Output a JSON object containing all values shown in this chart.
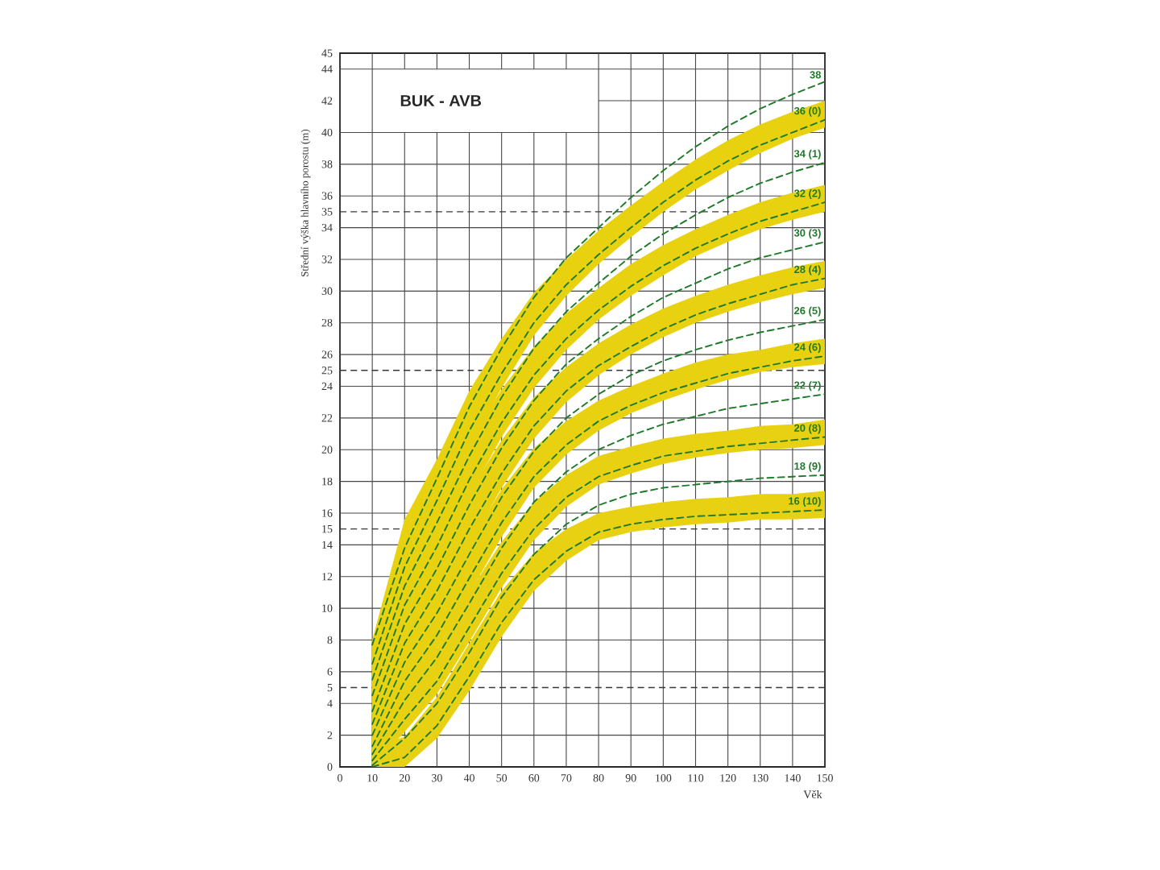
{
  "chart_data": {
    "type": "line",
    "title": "BUK - AVB",
    "xlabel": "Věk",
    "ylabel": "Střední výška hlavního porostu (m)",
    "x": [
      10,
      20,
      30,
      40,
      50,
      60,
      70,
      80,
      90,
      100,
      110,
      120,
      130,
      140,
      150
    ],
    "xlim": [
      0,
      150
    ],
    "ylim": [
      0,
      45
    ],
    "xticks": [
      0,
      10,
      20,
      30,
      40,
      50,
      60,
      70,
      80,
      90,
      100,
      110,
      120,
      130,
      140,
      150
    ],
    "yticks": [
      0,
      2,
      4,
      5,
      6,
      8,
      10,
      12,
      14,
      15,
      16,
      18,
      20,
      22,
      24,
      25,
      26,
      28,
      30,
      32,
      34,
      35,
      36,
      38,
      40,
      42,
      44,
      45
    ],
    "grid": true,
    "line_style": "dashed",
    "series": [
      {
        "name": "38",
        "color": "#1e7a28",
        "values": [
          7.7,
          13.8,
          18.2,
          22.7,
          26.4,
          29.6,
          32.1,
          34.0,
          35.9,
          37.6,
          39.1,
          40.4,
          41.5,
          42.4,
          43.2
        ]
      },
      {
        "name": "36 (0)",
        "color": "#1e7a28",
        "values": [
          6.5,
          12.6,
          16.8,
          21.2,
          24.8,
          28.0,
          30.4,
          32.3,
          34.0,
          35.6,
          37.0,
          38.2,
          39.2,
          40.0,
          40.8
        ],
        "lower": [
          5.5,
          11.3,
          15.8,
          20.1,
          23.9,
          27.2,
          29.7,
          31.7,
          33.4,
          35.0,
          36.4,
          37.6,
          38.7,
          39.6,
          40.3
        ],
        "upper": [
          8.0,
          15.6,
          19.4,
          23.7,
          27.0,
          29.9,
          32.0,
          33.8,
          35.4,
          36.9,
          38.3,
          39.5,
          40.5,
          41.3,
          42.0
        ]
      },
      {
        "name": "34 (1)",
        "color": "#1e7a28",
        "values": [
          5.5,
          11.4,
          15.4,
          19.6,
          23.3,
          26.4,
          28.7,
          30.5,
          32.2,
          33.6,
          34.8,
          35.9,
          36.8,
          37.5,
          38.1
        ]
      },
      {
        "name": "32 (2)",
        "color": "#1e7a28",
        "values": [
          4.5,
          10.2,
          13.9,
          18.1,
          21.7,
          24.7,
          27.0,
          28.8,
          30.3,
          31.6,
          32.7,
          33.6,
          34.4,
          35.0,
          35.6
        ],
        "lower": [
          3.1,
          9.0,
          12.9,
          17.1,
          20.8,
          23.9,
          26.3,
          28.2,
          29.7,
          31.0,
          32.2,
          33.1,
          33.9,
          34.5,
          35.0
        ],
        "upper": [
          7.8,
          13.0,
          16.3,
          20.5,
          23.8,
          26.5,
          28.6,
          30.2,
          31.7,
          32.9,
          33.9,
          34.8,
          35.6,
          36.2,
          36.7
        ]
      },
      {
        "name": "30 (3)",
        "color": "#1e7a28",
        "values": [
          3.5,
          9.0,
          12.5,
          16.5,
          20.1,
          23.1,
          25.4,
          27.0,
          28.4,
          29.6,
          30.5,
          31.4,
          32.1,
          32.6,
          33.1
        ]
      },
      {
        "name": "28 (4)",
        "color": "#1e7a28",
        "values": [
          2.7,
          7.8,
          11.1,
          15.0,
          18.5,
          21.5,
          23.7,
          25.3,
          26.5,
          27.6,
          28.5,
          29.2,
          29.8,
          30.4,
          30.8
        ],
        "lower": [
          1.4,
          6.7,
          10.1,
          14.0,
          17.6,
          20.7,
          23.0,
          24.7,
          26.0,
          27.1,
          28.0,
          28.7,
          29.3,
          29.8,
          30.2
        ],
        "upper": [
          5.7,
          10.4,
          13.4,
          17.3,
          20.6,
          23.3,
          25.2,
          26.7,
          27.9,
          28.9,
          29.7,
          30.4,
          31.0,
          31.5,
          31.9
        ]
      },
      {
        "name": "26 (5)",
        "color": "#1e7a28",
        "values": [
          2.0,
          6.6,
          9.7,
          13.4,
          17.0,
          19.9,
          22.0,
          23.5,
          24.7,
          25.6,
          26.3,
          26.9,
          27.4,
          27.8,
          28.2
        ]
      },
      {
        "name": "24 (6)",
        "color": "#1e7a28",
        "values": [
          1.3,
          5.4,
          8.3,
          11.9,
          15.4,
          18.3,
          20.3,
          21.8,
          22.8,
          23.6,
          24.2,
          24.8,
          25.2,
          25.6,
          25.9
        ],
        "lower": [
          0.2,
          4.5,
          7.4,
          10.9,
          14.5,
          17.6,
          19.7,
          21.2,
          22.3,
          23.1,
          23.8,
          24.4,
          24.9,
          25.2,
          25.4
        ],
        "upper": [
          3.8,
          7.6,
          10.4,
          14.2,
          17.5,
          20.1,
          21.8,
          23.1,
          24.0,
          24.8,
          25.5,
          26.0,
          26.3,
          26.7,
          27.0
        ]
      },
      {
        "name": "22 (7)",
        "color": "#1e7a28",
        "values": [
          0.8,
          4.2,
          6.9,
          10.3,
          13.8,
          16.7,
          18.6,
          20.0,
          20.9,
          21.6,
          22.1,
          22.6,
          22.9,
          23.2,
          23.5
        ]
      },
      {
        "name": "20 (8)",
        "color": "#1e7a28",
        "values": [
          0.4,
          3.0,
          5.4,
          8.8,
          12.2,
          15.0,
          17.0,
          18.3,
          19.0,
          19.6,
          19.9,
          20.2,
          20.4,
          20.6,
          20.8
        ],
        "lower": [
          0,
          2.2,
          4.6,
          7.9,
          11.3,
          14.3,
          16.4,
          17.8,
          18.5,
          19.1,
          19.5,
          19.8,
          20.0,
          20.1,
          20.3
        ],
        "upper": [
          2.2,
          4.9,
          7.4,
          11.0,
          14.2,
          16.7,
          18.4,
          19.6,
          20.2,
          20.7,
          21.0,
          21.2,
          21.5,
          21.6,
          21.9
        ]
      },
      {
        "name": "18 (9)",
        "color": "#1e7a28",
        "values": [
          0.1,
          1.8,
          4.0,
          7.2,
          10.7,
          13.4,
          15.3,
          16.5,
          17.2,
          17.6,
          17.8,
          18.0,
          18.2,
          18.3,
          18.4
        ]
      },
      {
        "name": "16 (10)",
        "color": "#1e7a28",
        "values": [
          0,
          0.6,
          2.6,
          5.7,
          9.1,
          11.8,
          13.6,
          14.8,
          15.3,
          15.6,
          15.8,
          15.9,
          16.0,
          16.1,
          16.2
        ],
        "lower": [
          0,
          0,
          1.8,
          4.8,
          8.2,
          11.1,
          13.0,
          14.3,
          14.8,
          15.1,
          15.3,
          15.4,
          15.6,
          15.6,
          15.7
        ],
        "upper": [
          1.2,
          1.9,
          4.4,
          7.8,
          11.1,
          13.5,
          15.0,
          16.0,
          16.4,
          16.7,
          16.9,
          17.0,
          17.2,
          17.2,
          17.4
        ]
      }
    ]
  }
}
